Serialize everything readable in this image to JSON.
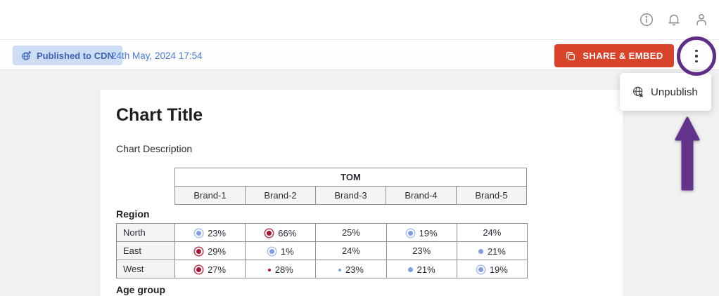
{
  "topbar": {
    "icons": [
      {
        "name": "info"
      },
      {
        "name": "notifications"
      },
      {
        "name": "profile"
      }
    ]
  },
  "publish_bar": {
    "badge_label": "Published to CDN",
    "timestamp": "24th May, 2024 17:54",
    "share_button_label": "SHARE & EMBED",
    "menu": {
      "items": [
        {
          "label": "Unpublish",
          "icon": "globe-x"
        }
      ]
    }
  },
  "card": {
    "title": "Chart Title",
    "description": "Chart Description",
    "table": {
      "group_header": "TOM",
      "columns": [
        "Brand-1",
        "Brand-2",
        "Brand-3",
        "Brand-4",
        "Brand-5"
      ],
      "sections": [
        {
          "label": "Region",
          "rows": [
            {
              "label": "North",
              "cells": [
                {
                  "icon": "big-blue",
                  "value": "23%"
                },
                {
                  "icon": "big-red",
                  "value": "66%"
                },
                {
                  "icon": null,
                  "value": "25%"
                },
                {
                  "icon": "big-blue",
                  "value": "19%"
                },
                {
                  "icon": null,
                  "value": "24%"
                }
              ]
            },
            {
              "label": "East",
              "cells": [
                {
                  "icon": "big-red",
                  "value": "29%"
                },
                {
                  "icon": "big-blue",
                  "value": "1%"
                },
                {
                  "icon": null,
                  "value": "24%"
                },
                {
                  "icon": null,
                  "value": "23%"
                },
                {
                  "icon": "dot-blue",
                  "value": "21%"
                }
              ]
            },
            {
              "label": "West",
              "cells": [
                {
                  "icon": "big-red",
                  "value": "27%"
                },
                {
                  "icon": "ring-red",
                  "value": "28%"
                },
                {
                  "icon": "ring-blue",
                  "value": "23%"
                },
                {
                  "icon": "dot-blue",
                  "value": "21%"
                },
                {
                  "icon": "big-blue",
                  "value": "19%"
                }
              ]
            }
          ]
        },
        {
          "label": "Age group",
          "rows": []
        }
      ]
    }
  },
  "annotation": {
    "color": "#5f2c87",
    "shapes": [
      "circle-around-kebab-menu",
      "arrow-pointing-to-unpublish"
    ]
  },
  "colors": {
    "accent_red": "#d8432a",
    "badge_bg": "#cdddf6",
    "badge_text": "#3c63b4",
    "timestamp_text": "#4a7cd8",
    "annotation_purple": "#5f2c87",
    "dot_blue": "#7e9de4",
    "dot_red": "#a6122e",
    "content_bg": "#f1f1f1"
  }
}
